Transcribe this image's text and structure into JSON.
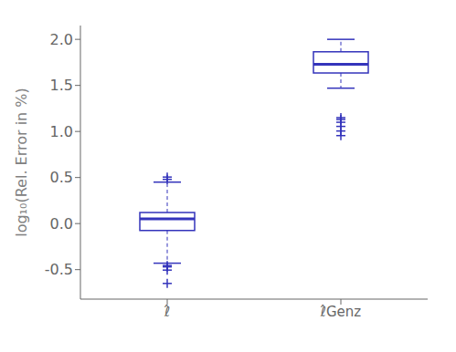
{
  "chart_data": {
    "type": "box",
    "ylabel": "log₁₀(Rel. Error in %)",
    "categories": [
      "ℓ̂",
      "ℓ̂Genz"
    ],
    "boxes": [
      {
        "q1": -0.075,
        "median": 0.05,
        "q3": 0.12,
        "whisker_low": -0.43,
        "whisker_high": 0.45,
        "outliers": [
          0.48,
          0.505,
          -0.455,
          -0.47,
          -0.505,
          -0.65
        ]
      },
      {
        "q1": 1.635,
        "median": 1.73,
        "q3": 1.865,
        "whisker_low": 1.47,
        "whisker_high": 2.0,
        "outliers": [
          0.955,
          1.005,
          1.055,
          1.1,
          1.13,
          1.15
        ]
      }
    ],
    "color": "#3333bb",
    "ylim": [
      -0.82,
      2.15
    ],
    "yticks": [
      -0.5,
      {
        "value": 0,
        "label": "0.0"
      },
      0.5,
      {
        "value": 1,
        "label": "1.0"
      },
      1.5,
      {
        "value": 2,
        "label": "2.0"
      }
    ],
    "grid": false
  }
}
